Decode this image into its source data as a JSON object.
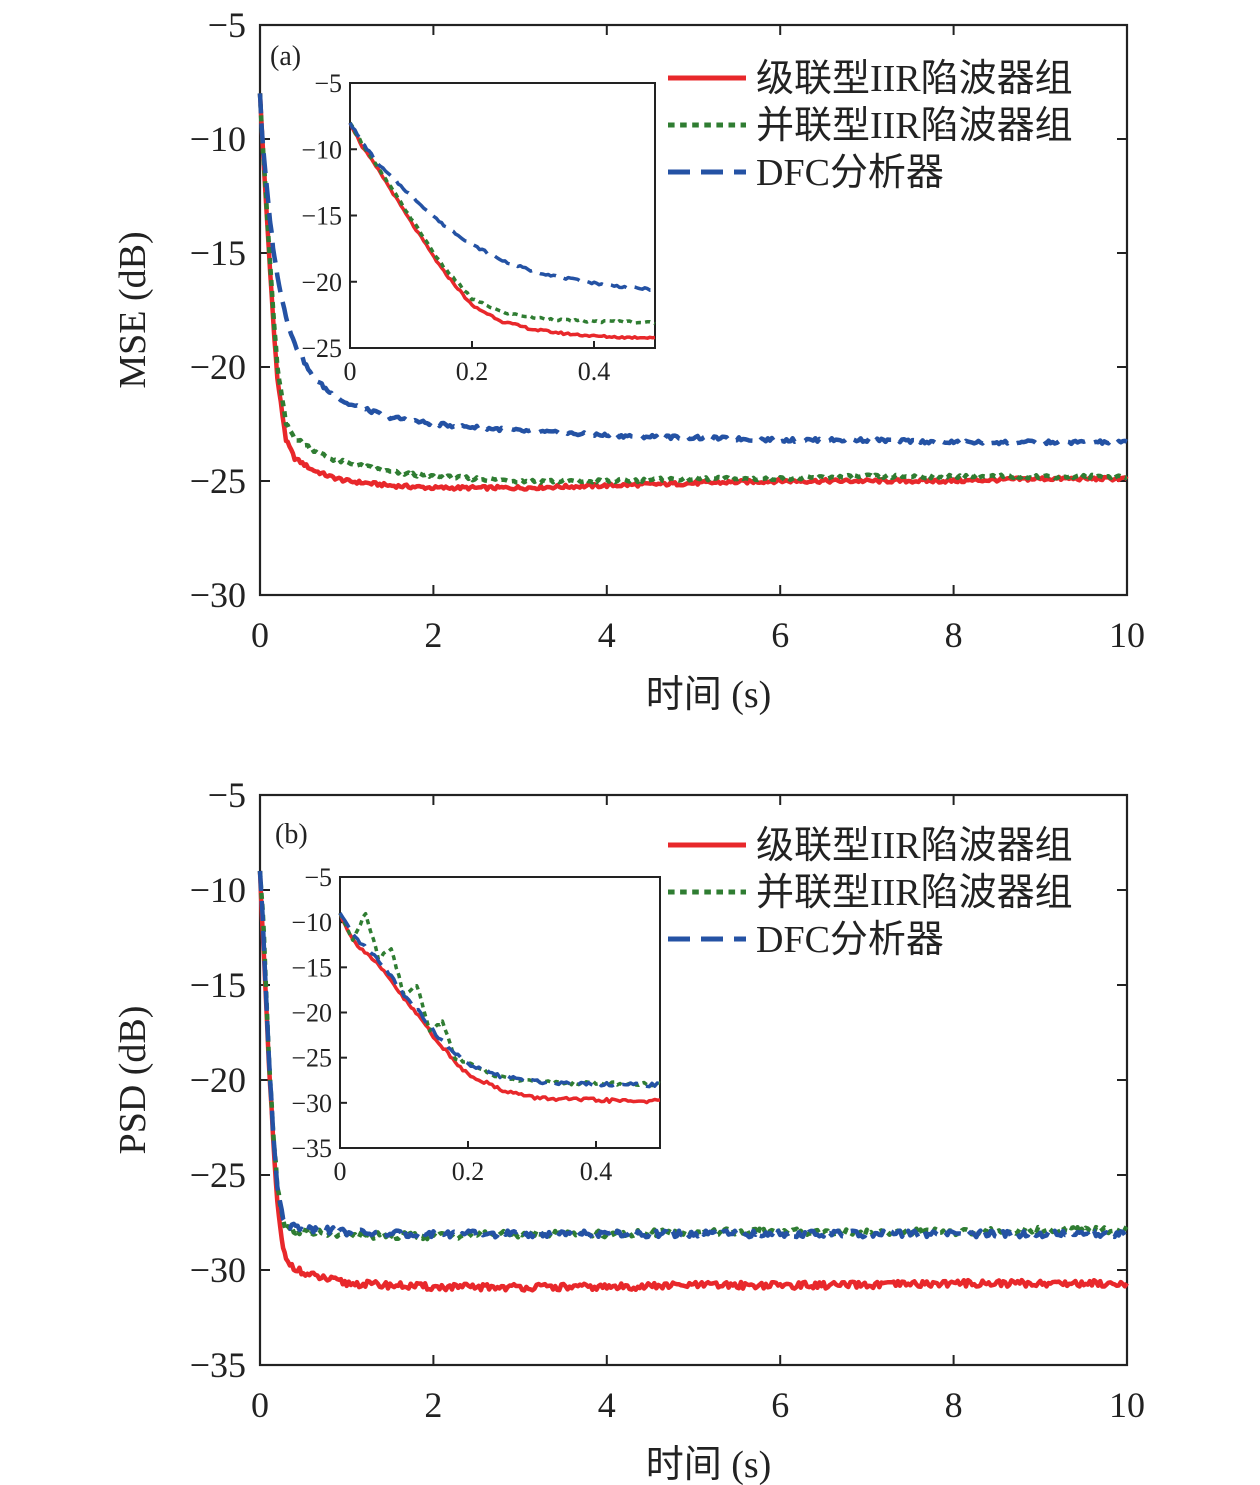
{
  "colors": {
    "cascade": "#e8282b",
    "parallel": "#2f7d32",
    "dfc": "#2452a4"
  },
  "chart_data": [
    {
      "type": "line",
      "panel_label": "(a)",
      "xlabel": "时间 (s)",
      "ylabel": "MSE (dB)",
      "xlim": [
        0,
        10
      ],
      "ylim": [
        -30,
        -5
      ],
      "x_ticks": [
        0,
        2,
        4,
        6,
        8,
        10
      ],
      "y_ticks": [
        -30,
        -25,
        -20,
        -15,
        -10,
        -5
      ],
      "legend_position": "top-right",
      "series": [
        {
          "name": "级联型IIR陷波器组",
          "key": "cascade",
          "style": "solid",
          "x": [
            0,
            0.02,
            0.05,
            0.1,
            0.15,
            0.2,
            0.3,
            0.4,
            0.6,
            0.8,
            1.0,
            1.5,
            2,
            3,
            4,
            5,
            6,
            7,
            8,
            9,
            10
          ],
          "y": [
            -8,
            -9.5,
            -11.5,
            -14.8,
            -17.8,
            -20.5,
            -23.2,
            -24.0,
            -24.5,
            -24.8,
            -25.0,
            -25.2,
            -25.3,
            -25.3,
            -25.2,
            -25.1,
            -25.0,
            -25.0,
            -25.0,
            -24.9,
            -24.9
          ]
        },
        {
          "name": "并联型IIR陷波器组",
          "key": "parallel",
          "style": "dotted",
          "x": [
            0,
            0.02,
            0.05,
            0.1,
            0.15,
            0.2,
            0.3,
            0.4,
            0.6,
            0.8,
            1.0,
            1.5,
            2,
            3,
            4,
            5,
            6,
            7,
            8,
            9,
            10
          ],
          "y": [
            -8,
            -9.5,
            -11.3,
            -14.5,
            -17.4,
            -20.0,
            -22.5,
            -23.1,
            -23.6,
            -24.0,
            -24.2,
            -24.6,
            -24.8,
            -25.0,
            -25.0,
            -24.9,
            -24.9,
            -24.8,
            -24.8,
            -24.8,
            -24.8
          ]
        },
        {
          "name": "DFC分析器",
          "key": "dfc",
          "style": "dashed",
          "x": [
            0,
            0.02,
            0.05,
            0.1,
            0.15,
            0.2,
            0.3,
            0.4,
            0.6,
            0.8,
            1.0,
            1.5,
            2,
            3,
            4,
            5,
            6,
            7,
            8,
            9,
            10
          ],
          "y": [
            -8,
            -9.5,
            -11.0,
            -13.0,
            -14.7,
            -16.0,
            -17.8,
            -19.0,
            -20.4,
            -21.1,
            -21.6,
            -22.2,
            -22.5,
            -22.8,
            -23.0,
            -23.1,
            -23.2,
            -23.2,
            -23.3,
            -23.3,
            -23.3
          ]
        }
      ],
      "inset": {
        "xlim": [
          0,
          0.5
        ],
        "ylim": [
          -25,
          -5
        ],
        "x_ticks": [
          0,
          0.2,
          0.4
        ],
        "x_tick_labels": [
          "0",
          "0.2",
          "0.4"
        ],
        "y_ticks": [
          -25,
          -20,
          -15,
          -10,
          -5
        ],
        "series": [
          {
            "key": "cascade",
            "style": "solid",
            "x": [
              0,
              0.02,
              0.05,
              0.1,
              0.15,
              0.2,
              0.25,
              0.3,
              0.35,
              0.4,
              0.45,
              0.5
            ],
            "y": [
              -8,
              -9.8,
              -11.8,
              -15.5,
              -19.0,
              -21.8,
              -23.0,
              -23.6,
              -23.9,
              -24.1,
              -24.2,
              -24.2
            ]
          },
          {
            "key": "parallel",
            "style": "dotted",
            "x": [
              0,
              0.02,
              0.05,
              0.1,
              0.15,
              0.2,
              0.25,
              0.3,
              0.35,
              0.4,
              0.45,
              0.5
            ],
            "y": [
              -8,
              -9.6,
              -11.7,
              -15.2,
              -18.7,
              -21.3,
              -22.3,
              -22.7,
              -22.9,
              -23.0,
              -23.0,
              -23.1
            ]
          },
          {
            "key": "dfc",
            "style": "dashed",
            "x": [
              0,
              0.02,
              0.05,
              0.1,
              0.15,
              0.2,
              0.25,
              0.3,
              0.35,
              0.4,
              0.45,
              0.5
            ],
            "y": [
              -8,
              -9.5,
              -11.3,
              -13.5,
              -15.6,
              -17.2,
              -18.4,
              -19.2,
              -19.7,
              -20.1,
              -20.4,
              -20.6
            ]
          }
        ]
      }
    },
    {
      "type": "line",
      "panel_label": "(b)",
      "xlabel": "时间 (s)",
      "ylabel": "PSD (dB)",
      "xlim": [
        0,
        10
      ],
      "ylim": [
        -35,
        -5
      ],
      "x_ticks": [
        0,
        2,
        4,
        6,
        8,
        10
      ],
      "y_ticks": [
        -35,
        -30,
        -25,
        -20,
        -15,
        -10,
        -5
      ],
      "legend_position": "top-right",
      "series": [
        {
          "name": "级联型IIR陷波器组",
          "key": "cascade",
          "style": "solid",
          "x": [
            0,
            0.03,
            0.06,
            0.1,
            0.15,
            0.2,
            0.25,
            0.3,
            0.5,
            0.8,
            1.0,
            1.5,
            2,
            3,
            4,
            5,
            6,
            7,
            8,
            9,
            10
          ],
          "y": [
            -9,
            -12,
            -15,
            -19,
            -23,
            -26.5,
            -28.5,
            -29.5,
            -30.2,
            -30.5,
            -30.7,
            -30.8,
            -30.9,
            -30.9,
            -30.9,
            -30.8,
            -30.8,
            -30.8,
            -30.7,
            -30.7,
            -30.7
          ]
        },
        {
          "name": "并联型IIR陷波器组",
          "key": "parallel",
          "style": "dotted",
          "x": [
            0,
            0.03,
            0.06,
            0.1,
            0.15,
            0.2,
            0.25,
            0.3,
            0.5,
            0.8,
            1.0,
            1.5,
            2,
            3,
            4,
            5,
            6,
            7,
            8,
            9,
            10
          ],
          "y": [
            -9,
            -11,
            -14,
            -18.5,
            -22.5,
            -25.5,
            -27.0,
            -27.8,
            -28.0,
            -28.1,
            -28.2,
            -28.2,
            -28.2,
            -28.1,
            -28.1,
            -28.0,
            -28.0,
            -28.0,
            -28.0,
            -27.9,
            -27.9
          ]
        },
        {
          "name": "DFC分析器",
          "key": "dfc",
          "style": "dashed",
          "x": [
            0,
            0.03,
            0.06,
            0.1,
            0.15,
            0.2,
            0.25,
            0.3,
            0.5,
            0.8,
            1.0,
            1.5,
            2,
            3,
            4,
            5,
            6,
            7,
            8,
            9,
            10
          ],
          "y": [
            -9,
            -11.5,
            -14.5,
            -18.5,
            -22.5,
            -25.5,
            -27.0,
            -27.6,
            -27.8,
            -27.9,
            -28.0,
            -28.1,
            -28.1,
            -28.1,
            -28.1,
            -28.1,
            -28.1,
            -28.1,
            -28.1,
            -28.1,
            -28.1
          ]
        }
      ],
      "inset": {
        "xlim": [
          0,
          0.5
        ],
        "ylim": [
          -35,
          -5
        ],
        "x_ticks": [
          0,
          0.2,
          0.4
        ],
        "x_tick_labels": [
          "0",
          "0.2",
          "0.4"
        ],
        "y_ticks": [
          -35,
          -30,
          -25,
          -20,
          -15,
          -10,
          -5
        ],
        "series": [
          {
            "key": "cascade",
            "style": "solid",
            "x": [
              0,
              0.02,
              0.05,
              0.08,
              0.1,
              0.13,
              0.15,
              0.18,
              0.2,
              0.25,
              0.3,
              0.35,
              0.4,
              0.45,
              0.5
            ],
            "y": [
              -9,
              -12,
              -14,
              -16.5,
              -18.5,
              -21,
              -23,
              -25.5,
              -26.8,
              -28.5,
              -29.4,
              -29.6,
              -29.7,
              -29.8,
              -29.8
            ]
          },
          {
            "key": "parallel",
            "style": "dotted",
            "x": [
              0,
              0.02,
              0.04,
              0.06,
              0.08,
              0.1,
              0.12,
              0.14,
              0.16,
              0.18,
              0.2,
              0.25,
              0.3,
              0.35,
              0.4,
              0.45,
              0.5
            ],
            "y": [
              -9,
              -12,
              -9,
              -14,
              -13,
              -18,
              -17,
              -22,
              -21,
              -25,
              -25.5,
              -27.2,
              -27.6,
              -27.8,
              -27.8,
              -27.9,
              -27.9
            ]
          },
          {
            "key": "dfc",
            "style": "dashed",
            "x": [
              0,
              0.02,
              0.05,
              0.08,
              0.1,
              0.13,
              0.15,
              0.18,
              0.2,
              0.25,
              0.3,
              0.35,
              0.4,
              0.45,
              0.5
            ],
            "y": [
              -9,
              -11.5,
              -13.5,
              -16,
              -18,
              -20.5,
              -22.5,
              -24.5,
              -25.8,
              -27.0,
              -27.6,
              -27.8,
              -27.9,
              -28.0,
              -28.0
            ]
          }
        ]
      }
    }
  ]
}
